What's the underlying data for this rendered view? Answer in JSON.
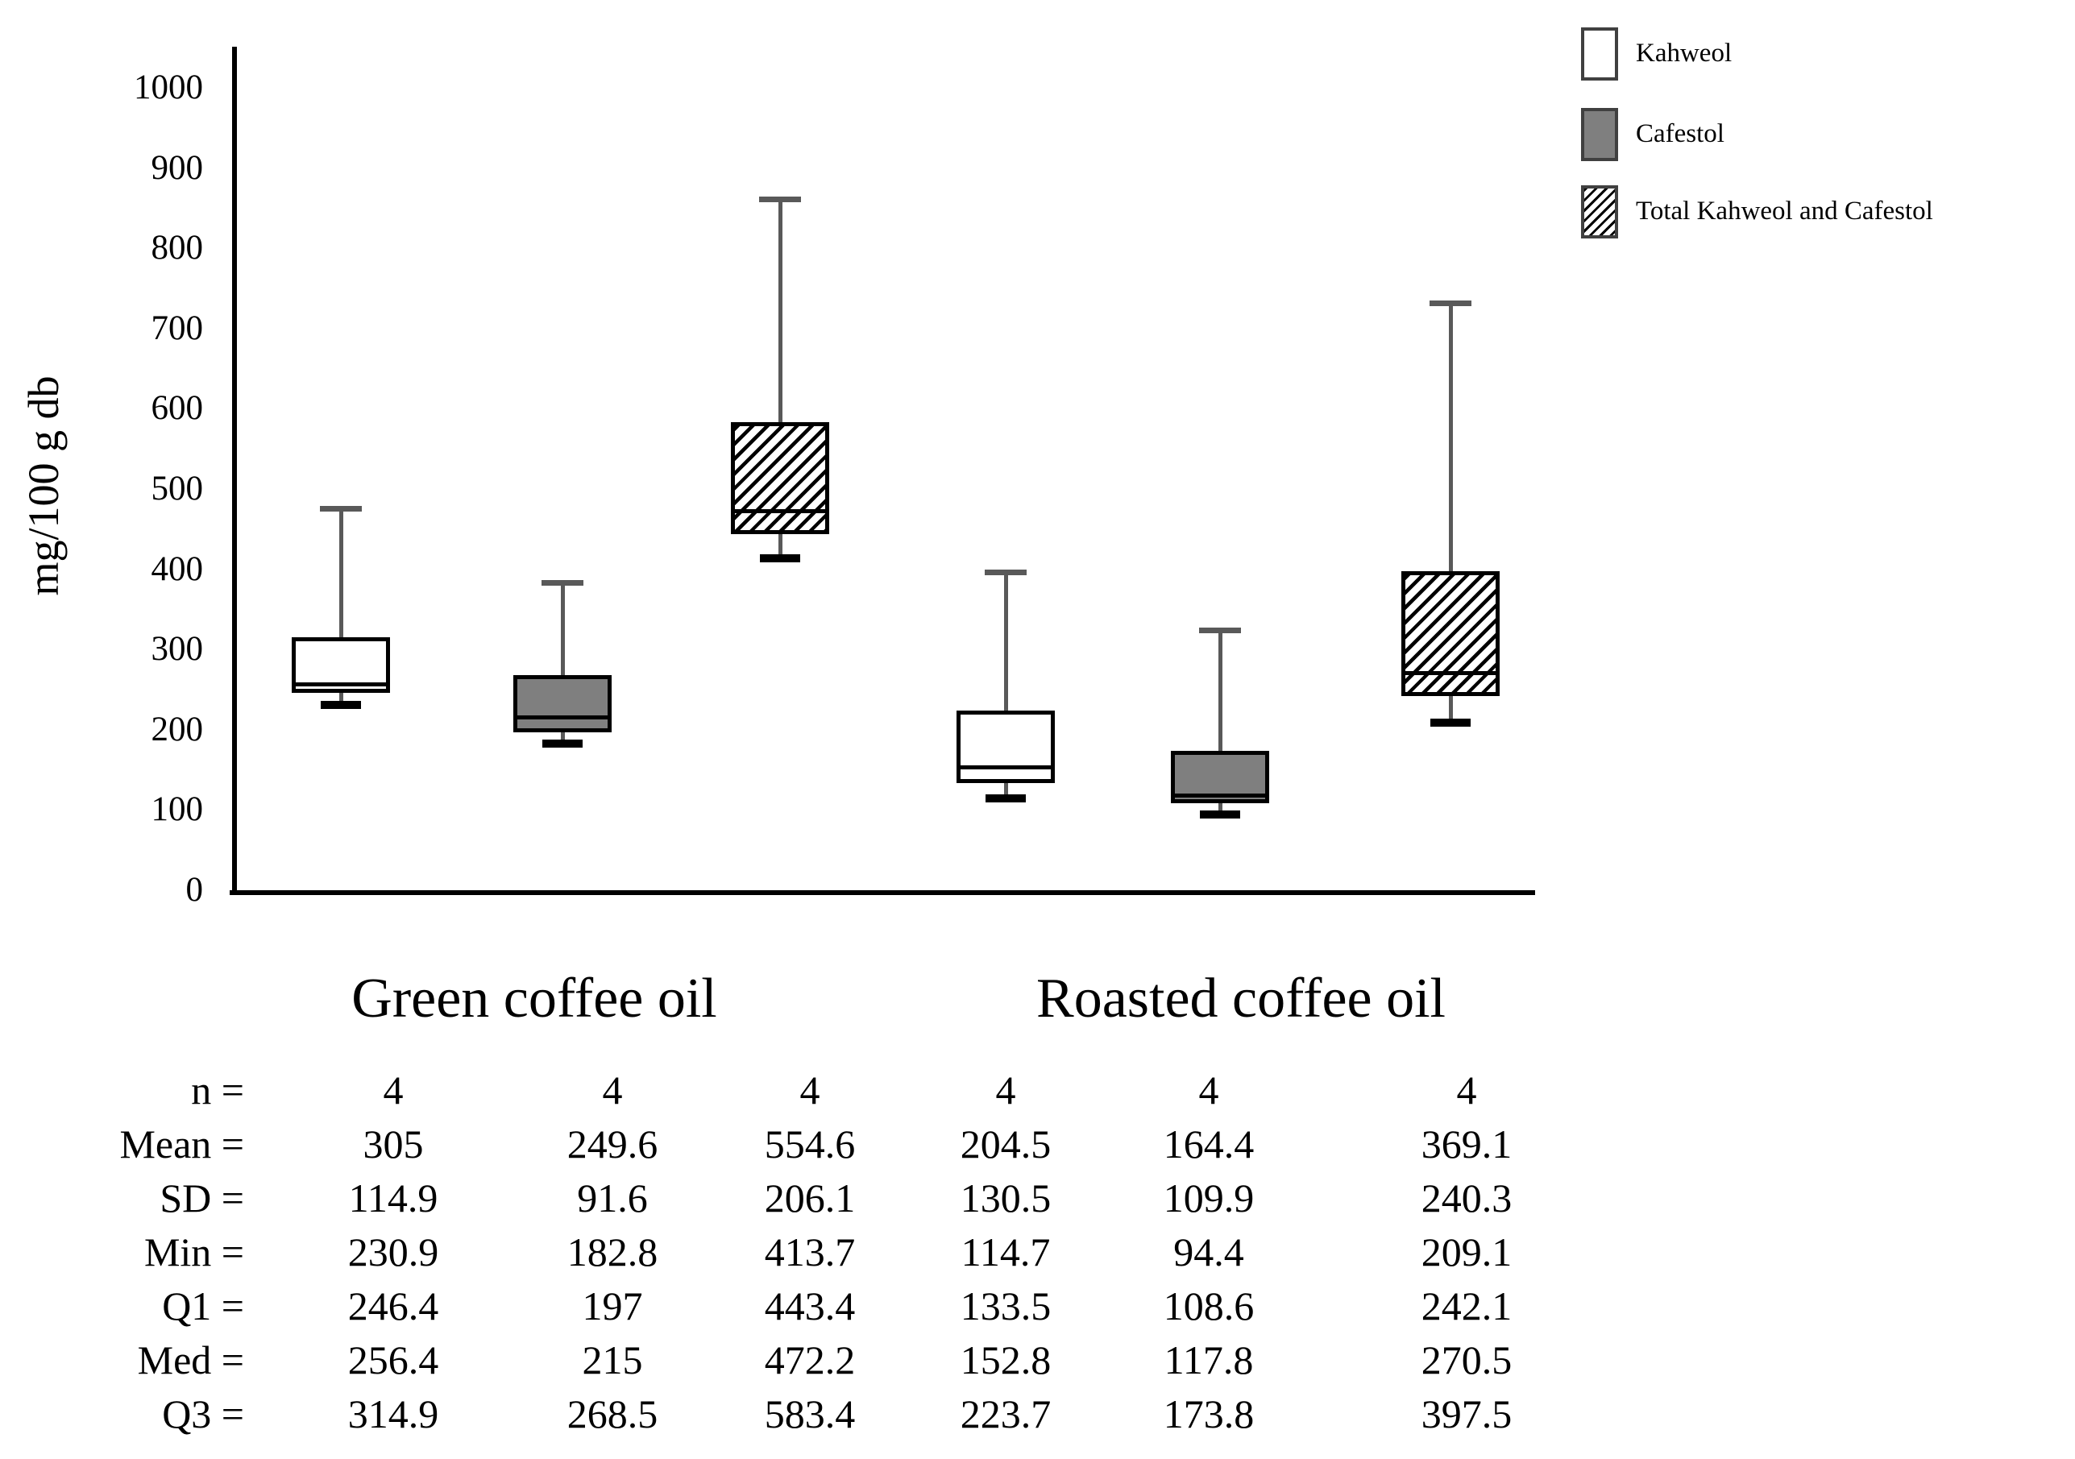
{
  "colors": {
    "box_border": "#000000",
    "gray_fill": "#7f7f7f",
    "hatch_line": "#000000",
    "whisker": "#595959",
    "text": "#000000",
    "background": "#ffffff"
  },
  "chart_data": {
    "type": "boxplot",
    "title": "",
    "ylabel": "mg/100 g db",
    "ylim": [
      0,
      1000
    ],
    "ytick_step": 100,
    "ytick_labels": [
      "0",
      "100",
      "200",
      "300",
      "400",
      "500",
      "600",
      "700",
      "800",
      "900",
      "1000"
    ],
    "grid": false,
    "legend_position": "top-right",
    "legend": [
      {
        "label": "Kahweol",
        "style": "white"
      },
      {
        "label": "Cafestol",
        "style": "gray"
      },
      {
        "label": "Total Kahweol and Cafestol",
        "style": "hatch"
      }
    ],
    "groups": [
      {
        "label": "Green coffee oil"
      },
      {
        "label": "Roasted coffee oil"
      }
    ],
    "series": [
      {
        "group": "Green coffee oil",
        "name": "Kahweol",
        "style": "white",
        "n": 4,
        "mean": 305,
        "sd": 114.9,
        "min": 230.9,
        "q1": 246.4,
        "med": 256.4,
        "q3": 314.9,
        "whisker_top": 475
      },
      {
        "group": "Green coffee oil",
        "name": "Cafestol",
        "style": "gray",
        "n": 4,
        "mean": 249.6,
        "sd": 91.6,
        "min": 182.8,
        "q1": 197,
        "med": 215,
        "q3": 268.5,
        "whisker_top": 383
      },
      {
        "group": "Green coffee oil",
        "name": "Total Kahweol and Cafestol",
        "style": "hatch",
        "n": 4,
        "mean": 554.6,
        "sd": 206.1,
        "min": 413.7,
        "q1": 443.4,
        "med": 472.2,
        "q3": 583.4,
        "whisker_top": 861
      },
      {
        "group": "Roasted coffee oil",
        "name": "Kahweol",
        "style": "white",
        "n": 4,
        "mean": 204.5,
        "sd": 130.5,
        "min": 114.7,
        "q1": 133.5,
        "med": 152.8,
        "q3": 223.7,
        "whisker_top": 396
      },
      {
        "group": "Roasted coffee oil",
        "name": "Cafestol",
        "style": "gray",
        "n": 4,
        "mean": 164.4,
        "sd": 109.9,
        "min": 94.4,
        "q1": 108.6,
        "med": 117.8,
        "q3": 173.8,
        "whisker_top": 324
      },
      {
        "group": "Roasted coffee oil",
        "name": "Total Kahweol and Cafestol",
        "style": "hatch",
        "n": 4,
        "mean": 369.1,
        "sd": 240.3,
        "min": 209.1,
        "q1": 242.1,
        "med": 270.5,
        "q3": 397.5,
        "whisker_top": 731
      }
    ]
  },
  "stats_table": {
    "rows": [
      {
        "label": "n =",
        "key": "n"
      },
      {
        "label": "Mean =",
        "key": "mean"
      },
      {
        "label": "SD =",
        "key": "sd"
      },
      {
        "label": "Min =",
        "key": "min"
      },
      {
        "label": "Q1 =",
        "key": "q1"
      },
      {
        "label": "Med =",
        "key": "med"
      },
      {
        "label": "Q3 =",
        "key": "q3"
      }
    ]
  }
}
